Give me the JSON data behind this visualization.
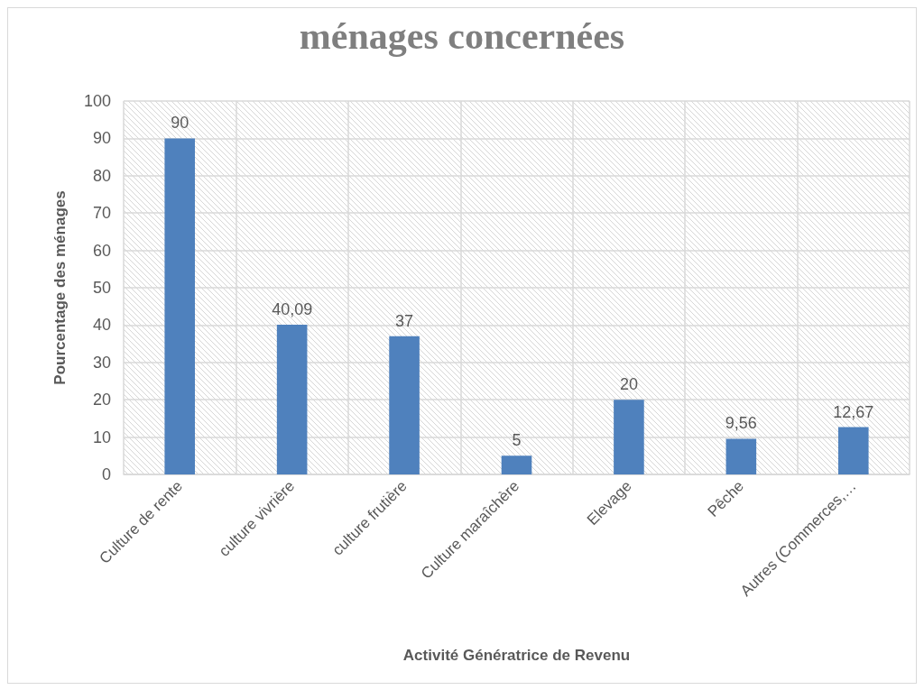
{
  "chart_data": {
    "type": "bar",
    "title": "ménages concernées",
    "xlabel": "Activité Génératrice de Revenu",
    "ylabel": "Pourcentage des ménages",
    "categories": [
      "Culture de rente",
      "culture vivrière",
      "culture frutière",
      "Culture maraîchère",
      "Elevage",
      "Pêche",
      "Autres (Commerces,…"
    ],
    "values": [
      90,
      40.09,
      37,
      5,
      20,
      9.56,
      12.67
    ],
    "value_labels": [
      "90",
      "40,09",
      "37",
      "5",
      "20",
      "9,56",
      "12,67"
    ],
    "color": "#4f81bd",
    "ylim": [
      0,
      100
    ],
    "yticks": [
      0,
      10,
      20,
      30,
      40,
      50,
      60,
      70,
      80,
      90,
      100
    ],
    "grid": true
  }
}
